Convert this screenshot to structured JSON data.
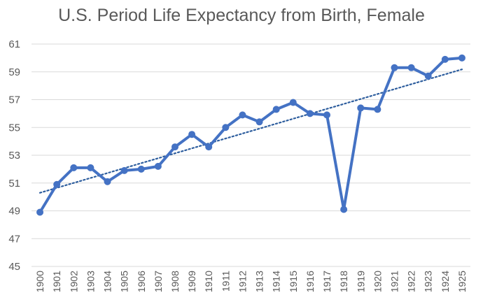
{
  "chart_data": {
    "type": "line",
    "title": "U.S. Period Life Expectancy from Birth, Female",
    "xlabel": "",
    "ylabel": "",
    "ylim": [
      45,
      61
    ],
    "yticks": [
      45,
      47,
      49,
      51,
      53,
      55,
      57,
      59,
      61
    ],
    "grid": true,
    "legend": "none",
    "categories": [
      "1900",
      "1901",
      "1902",
      "1903",
      "1904",
      "1905",
      "1906",
      "1907",
      "1908",
      "1909",
      "1910",
      "1911",
      "1912",
      "1913",
      "1914",
      "1915",
      "1916",
      "1917",
      "1918",
      "1919",
      "1920",
      "1921",
      "1922",
      "1923",
      "1924",
      "1925"
    ],
    "series": [
      {
        "color": "#4472c4",
        "marker": "circle",
        "values": [
          48.9,
          50.9,
          52.1,
          52.1,
          51.1,
          51.9,
          52.0,
          52.2,
          53.6,
          54.5,
          53.6,
          55.0,
          55.9,
          55.4,
          56.3,
          56.8,
          56.0,
          55.9,
          49.1,
          56.4,
          56.3,
          59.3,
          59.3,
          58.7,
          59.9,
          60.0
        ]
      }
    ],
    "trendline": {
      "type": "linear",
      "style": "dotted",
      "color": "#2e5e9e"
    }
  }
}
